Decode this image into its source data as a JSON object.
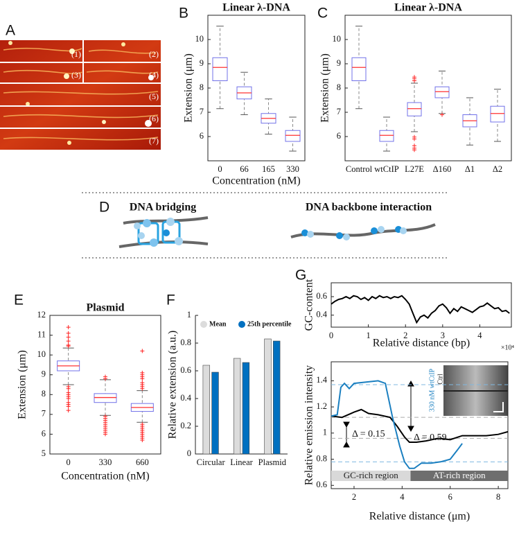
{
  "panel_labels": [
    "A",
    "B",
    "C",
    "D",
    "E",
    "F",
    "G"
  ],
  "image_labels": [
    "(1)",
    "(2)",
    "(3)",
    "(4)",
    "(5)",
    "(6)",
    "(7)"
  ],
  "diagram": {
    "left_title": "DNA bridging",
    "right_title": "DNA backbone interaction"
  },
  "chart_data": [
    {
      "type": "box",
      "title": "Linear λ-DNA",
      "x_label": "Concentration (nM)",
      "y_label": "Extension (μm)",
      "categories": [
        "0",
        "66",
        "165",
        "330"
      ],
      "boxes": [
        {
          "low": 7.15,
          "q1": 8.3,
          "median": 8.85,
          "q3": 9.25,
          "high": 10.55,
          "outliers": []
        },
        {
          "low": 6.9,
          "q1": 7.55,
          "median": 7.8,
          "q3": 8.05,
          "high": 8.65,
          "outliers": []
        },
        {
          "low": 6.1,
          "q1": 6.55,
          "median": 6.75,
          "q3": 6.95,
          "high": 7.55,
          "outliers": []
        },
        {
          "low": 5.4,
          "q1": 5.8,
          "median": 6.05,
          "q3": 6.25,
          "high": 6.8,
          "outliers": []
        }
      ],
      "color": "#7070e8",
      "median_color": "#ff3030",
      "outlier_color": "#ff2020",
      "ylim": [
        5,
        11
      ],
      "yticks": [
        6,
        7,
        8,
        9,
        10
      ]
    },
    {
      "type": "box",
      "title": "Linear λ-DNA",
      "y_label": "Extension (μm)",
      "categories": [
        "Control",
        "wtCtIP",
        "L27E",
        "Δ160",
        "Δ1",
        "Δ2"
      ],
      "boxes": [
        {
          "low": 7.15,
          "q1": 8.3,
          "median": 8.85,
          "q3": 9.25,
          "high": 10.55,
          "outliers": []
        },
        {
          "low": 5.4,
          "q1": 5.8,
          "median": 6.05,
          "q3": 6.25,
          "high": 6.8,
          "outliers": []
        },
        {
          "low": 6.2,
          "q1": 6.85,
          "median": 7.15,
          "q3": 7.4,
          "high": 8.2,
          "outliers": [
            8.45,
            8.38,
            8.3,
            5.98,
            5.9,
            5.62,
            5.52,
            5.45
          ]
        },
        {
          "low": 6.95,
          "q1": 7.6,
          "median": 7.85,
          "q3": 8.05,
          "high": 8.7,
          "outliers": [
            6.9
          ]
        },
        {
          "low": 5.65,
          "q1": 6.4,
          "median": 6.65,
          "q3": 6.9,
          "high": 7.6,
          "outliers": []
        },
        {
          "low": 5.8,
          "q1": 6.6,
          "median": 6.95,
          "q3": 7.25,
          "high": 7.95,
          "outliers": []
        }
      ],
      "color": "#7070e8",
      "median_color": "#ff3030",
      "outlier_color": "#ff2020",
      "ylim": [
        5,
        11
      ],
      "yticks": [
        6,
        7,
        8,
        9,
        10
      ]
    },
    {
      "type": "box",
      "title": "Plasmid",
      "x_label": "Concentration (nM)",
      "y_label": "Extension (μm)",
      "categories": [
        "0",
        "330",
        "660"
      ],
      "boxes": [
        {
          "low": 8.5,
          "q1": 9.2,
          "median": 9.45,
          "q3": 9.7,
          "high": 10.35,
          "outliers": [
            11.4,
            11.1,
            10.9,
            10.7,
            10.5,
            10.45,
            8.4,
            8.3,
            8.1,
            8.0,
            7.9,
            7.8,
            7.6,
            7.5,
            7.4,
            7.2
          ]
        },
        {
          "low": 6.95,
          "q1": 7.6,
          "median": 7.85,
          "q3": 8.05,
          "high": 8.75,
          "outliers": [
            8.9,
            8.8,
            6.9,
            6.8,
            6.7,
            6.6,
            6.5,
            6.4,
            6.3,
            6.2,
            6.1,
            6.0
          ]
        },
        {
          "low": 6.6,
          "q1": 7.15,
          "median": 7.35,
          "q3": 7.55,
          "high": 8.2,
          "outliers": [
            10.2,
            9.1,
            9.0,
            8.9,
            8.8,
            8.6,
            8.5,
            8.4,
            8.3,
            6.5,
            6.4,
            6.3,
            6.2,
            6.1,
            6.0,
            5.9,
            5.8,
            5.7
          ]
        }
      ],
      "color": "#7070e8",
      "median_color": "#ff3030",
      "outlier_color": "#ff2020",
      "ylim": [
        5,
        12
      ],
      "yticks": [
        5,
        6,
        7,
        8,
        9,
        10,
        11,
        12
      ]
    },
    {
      "type": "bar",
      "y_label": "Relative extension (a.u.)",
      "categories": [
        "Circular",
        "Linear",
        "Plasmid"
      ],
      "series": [
        {
          "name": "Mean",
          "color": "#dcdcdc",
          "values": [
            0.64,
            0.69,
            0.83
          ]
        },
        {
          "name": "25th percentile",
          "color": "#0070c0",
          "values": [
            0.59,
            0.66,
            0.815
          ]
        }
      ],
      "ylim": [
        0,
        1
      ],
      "yticks": [
        0,
        0.2,
        0.4,
        0.6,
        0.8,
        1
      ],
      "legend": "top"
    },
    {
      "type": "line",
      "x_label": "Relative distance (bp)",
      "y_label": "GC-content",
      "x_multiplier": "×10⁴",
      "x": [
        0,
        1000,
        2000,
        3000,
        4000,
        5000,
        6000,
        7000,
        8000,
        9000,
        10000,
        11000,
        12000,
        13000,
        14000,
        15000,
        16000,
        17000,
        18000,
        19000,
        20000,
        21000,
        22000,
        23000,
        24000,
        25000,
        26000,
        27000,
        28000,
        29000,
        30000,
        31000,
        32000,
        33000,
        34000,
        35000,
        36000,
        37000,
        38000,
        39000,
        40000,
        41000,
        42000,
        43000,
        44000,
        45000,
        46000,
        47000,
        48000
      ],
      "values": [
        0.52,
        0.55,
        0.57,
        0.58,
        0.6,
        0.58,
        0.61,
        0.6,
        0.57,
        0.59,
        0.56,
        0.6,
        0.58,
        0.61,
        0.59,
        0.6,
        0.58,
        0.6,
        0.59,
        0.61,
        0.57,
        0.52,
        0.42,
        0.32,
        0.38,
        0.4,
        0.37,
        0.42,
        0.45,
        0.5,
        0.52,
        0.48,
        0.42,
        0.47,
        0.44,
        0.49,
        0.47,
        0.45,
        0.43,
        0.46,
        0.49,
        0.5,
        0.53,
        0.5,
        0.47,
        0.48,
        0.44,
        0.45,
        0.42
      ],
      "color": "#000000",
      "xlim": [
        0,
        48500
      ],
      "xticks": [
        0,
        {
          "value": 10000,
          "label": "1"
        },
        {
          "value": 20000,
          "label": "2"
        },
        {
          "value": 30000,
          "label": "3"
        },
        {
          "value": 40000,
          "label": "4"
        }
      ],
      "ylim": [
        0.27,
        0.75
      ],
      "yticks": [
        0.4,
        0.6
      ]
    },
    {
      "type": "line",
      "x_label": "Relative distance (μm)",
      "y_label": "Relative emission intensity",
      "series": [
        {
          "name": "Ctrl",
          "color": "#000000",
          "x": [
            1.05,
            1.5,
            2,
            2.3,
            2.6,
            3,
            3.5,
            3.8,
            4.1,
            4.3,
            4.6,
            5,
            5.5,
            6,
            6.5,
            7,
            7.5,
            8,
            8.4
          ],
          "values": [
            1.13,
            1.12,
            1.16,
            1.18,
            1.15,
            1.14,
            1.12,
            1.05,
            0.97,
            0.93,
            0.93,
            0.94,
            0.96,
            0.95,
            0.98,
            0.98,
            0.98,
            0.99,
            1.01
          ]
        },
        {
          "name": "330 nM wtCtIP",
          "color": "#1a7fc0",
          "x": [
            1.05,
            1.3,
            1.45,
            1.6,
            1.8,
            2,
            2.5,
            3,
            3.3,
            3.6,
            3.9,
            4.1,
            4.3,
            4.5,
            4.8,
            5.2,
            5.6,
            6,
            6.3,
            6.5
          ],
          "values": [
            1.13,
            1.14,
            1.35,
            1.38,
            1.34,
            1.38,
            1.39,
            1.4,
            1.38,
            1.12,
            0.9,
            0.78,
            0.73,
            0.73,
            0.77,
            0.77,
            0.78,
            0.8,
            0.87,
            0.92
          ]
        }
      ],
      "reference_lines": [
        {
          "value": 1.37,
          "color": "#7fb8e0"
        },
        {
          "value": 1.12,
          "color": "#aaaaaa"
        },
        {
          "value": 0.96,
          "color": "#aaaaaa"
        },
        {
          "value": 0.78,
          "color": "#7fb8e0"
        }
      ],
      "regions": [
        {
          "label": "GC-rich region",
          "start": 1.05,
          "end": 4.35,
          "color": "#d9d9d9"
        },
        {
          "label": "AT-rich region",
          "start": 4.35,
          "end": 8.4,
          "color": "#6e6e6e"
        }
      ],
      "annotations": [
        "Δ = 0.15",
        "Δ = 0.59"
      ],
      "xlim": [
        1.05,
        8.4
      ],
      "xticks": [
        2,
        4,
        6,
        8
      ],
      "ylim": [
        0.575,
        1.545
      ],
      "yticks": [
        0.6,
        0.8,
        1,
        1.2,
        1.4
      ]
    }
  ]
}
